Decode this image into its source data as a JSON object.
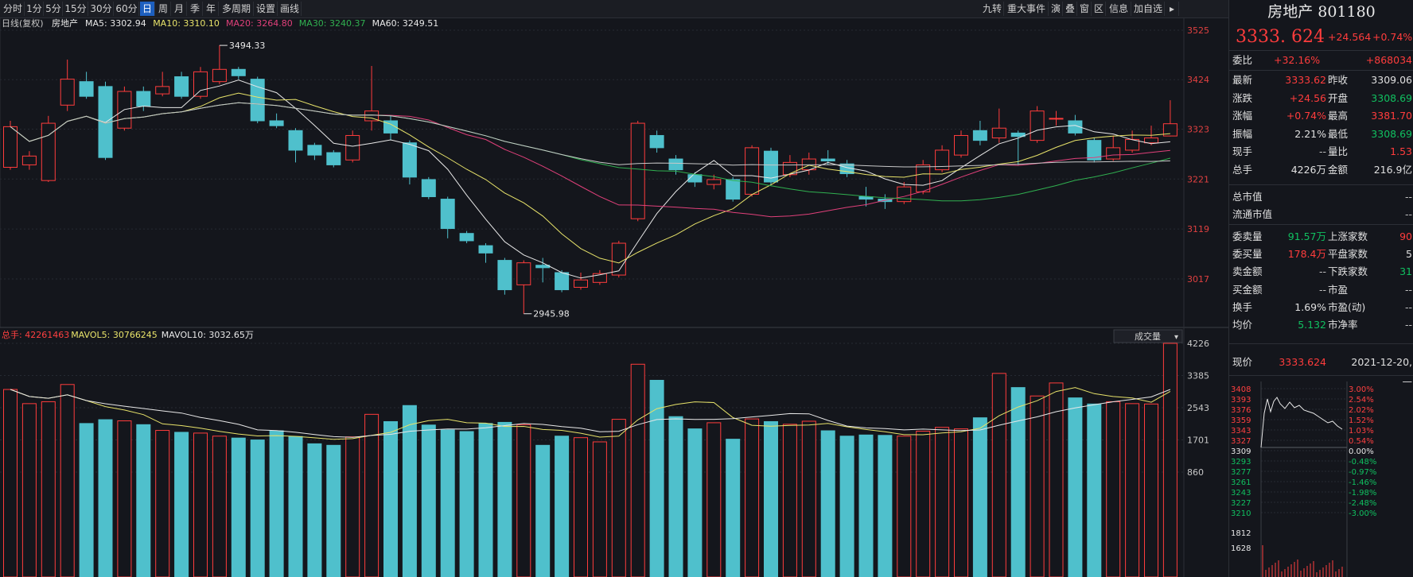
{
  "toolbar": {
    "left": [
      "分时",
      "1分",
      "5分",
      "15分",
      "30分",
      "60分",
      "日",
      "周",
      "月",
      "季",
      "年",
      "多周期",
      "设置",
      "画线"
    ],
    "active_index": 6,
    "right": [
      "九转",
      "重大事件",
      "演",
      "叠",
      "窗",
      "区",
      "信息",
      "加自选"
    ]
  },
  "ma_legend": {
    "period": "日线(复权)",
    "name": "房地产",
    "items": [
      {
        "label": "MA5: 3302.94",
        "color": "#e8e8e8"
      },
      {
        "label": "MA10: 3310.10",
        "color": "#e8e36a"
      },
      {
        "label": "MA20: 3264.80",
        "color": "#e0407a"
      },
      {
        "label": "MA30: 3240.37",
        "color": "#30b050"
      },
      {
        "label": "MA60: 3249.51",
        "color": "#e8e8e8"
      }
    ]
  },
  "vol_legend": {
    "items": [
      {
        "label": "总手: 42261463",
        "color": "#ff4040"
      },
      {
        "label": "MAVOL5: 30766245",
        "color": "#e8e36a"
      },
      {
        "label": "MAVOL10: 3032.65万",
        "color": "#e8e8e8"
      }
    ],
    "button": "成交量"
  },
  "chart_data": {
    "type": "candlestick",
    "price_axis_labels": [
      "3525",
      "3424",
      "3323",
      "3221",
      "3119",
      "3017"
    ],
    "price_axis_values": [
      3525,
      3424,
      3323,
      3221,
      3119,
      3017
    ],
    "volume_axis_labels": [
      "4226",
      "3385",
      "2543",
      "1701",
      "860"
    ],
    "volume_axis_values": [
      4226,
      3385,
      2543,
      1701,
      860
    ],
    "high_marker": "3494.33",
    "low_marker": "2945.98",
    "candles": [
      {
        "o": 3245,
        "c": 3328,
        "h": 3340,
        "l": 3240,
        "v": 3020
      },
      {
        "o": 3250,
        "c": 3268,
        "h": 3278,
        "l": 3240,
        "v": 2650
      },
      {
        "o": 3218,
        "c": 3335,
        "h": 3350,
        "l": 3215,
        "v": 2700
      },
      {
        "o": 3372,
        "c": 3425,
        "h": 3465,
        "l": 3360,
        "v": 3150
      },
      {
        "o": 3420,
        "c": 3390,
        "h": 3440,
        "l": 3385,
        "v": 2130
      },
      {
        "o": 3410,
        "c": 3265,
        "h": 3420,
        "l": 3260,
        "v": 2230
      },
      {
        "o": 3325,
        "c": 3400,
        "h": 3410,
        "l": 3320,
        "v": 2200
      },
      {
        "o": 3400,
        "c": 3370,
        "h": 3410,
        "l": 3360,
        "v": 2100
      },
      {
        "o": 3395,
        "c": 3410,
        "h": 3440,
        "l": 3390,
        "v": 1950
      },
      {
        "o": 3430,
        "c": 3390,
        "h": 3440,
        "l": 3385,
        "v": 1900
      },
      {
        "o": 3390,
        "c": 3440,
        "h": 3450,
        "l": 3385,
        "v": 1880
      },
      {
        "o": 3420,
        "c": 3445,
        "h": 3494,
        "l": 3415,
        "v": 1800
      },
      {
        "o": 3445,
        "c": 3432,
        "h": 3450,
        "l": 3425,
        "v": 1750
      },
      {
        "o": 3425,
        "c": 3340,
        "h": 3430,
        "l": 3335,
        "v": 1700
      },
      {
        "o": 3340,
        "c": 3330,
        "h": 3355,
        "l": 3325,
        "v": 1940
      },
      {
        "o": 3320,
        "c": 3280,
        "h": 3325,
        "l": 3255,
        "v": 1790
      },
      {
        "o": 3290,
        "c": 3270,
        "h": 3295,
        "l": 3260,
        "v": 1600
      },
      {
        "o": 3275,
        "c": 3250,
        "h": 3280,
        "l": 3245,
        "v": 1560
      },
      {
        "o": 3260,
        "c": 3310,
        "h": 3320,
        "l": 3255,
        "v": 1780
      },
      {
        "o": 3340,
        "c": 3360,
        "h": 3452,
        "l": 3320,
        "v": 2370
      },
      {
        "o": 3340,
        "c": 3315,
        "h": 3350,
        "l": 3300,
        "v": 2180
      },
      {
        "o": 3295,
        "c": 3225,
        "h": 3300,
        "l": 3210,
        "v": 2600
      },
      {
        "o": 3220,
        "c": 3185,
        "h": 3225,
        "l": 3180,
        "v": 2090
      },
      {
        "o": 3180,
        "c": 3120,
        "h": 3185,
        "l": 3100,
        "v": 1960
      },
      {
        "o": 3110,
        "c": 3095,
        "h": 3115,
        "l": 3090,
        "v": 1920
      },
      {
        "o": 3085,
        "c": 3070,
        "h": 3090,
        "l": 3050,
        "v": 2130
      },
      {
        "o": 3055,
        "c": 2995,
        "h": 3060,
        "l": 2985,
        "v": 2160
      },
      {
        "o": 3005,
        "c": 3050,
        "h": 3055,
        "l": 2946,
        "v": 2100
      },
      {
        "o": 3045,
        "c": 3040,
        "h": 3060,
        "l": 3010,
        "v": 1560
      },
      {
        "o": 3030,
        "c": 2995,
        "h": 3035,
        "l": 2990,
        "v": 1800
      },
      {
        "o": 3000,
        "c": 3015,
        "h": 3030,
        "l": 2995,
        "v": 1760
      },
      {
        "o": 3010,
        "c": 3028,
        "h": 3035,
        "l": 3005,
        "v": 1650
      },
      {
        "o": 3025,
        "c": 3090,
        "h": 3095,
        "l": 3020,
        "v": 2240
      },
      {
        "o": 3140,
        "c": 3335,
        "h": 3340,
        "l": 3135,
        "v": 3680
      },
      {
        "o": 3310,
        "c": 3285,
        "h": 3320,
        "l": 3275,
        "v": 3260
      },
      {
        "o": 3262,
        "c": 3240,
        "h": 3270,
        "l": 3230,
        "v": 2310
      },
      {
        "o": 3230,
        "c": 3215,
        "h": 3235,
        "l": 3205,
        "v": 1990
      },
      {
        "o": 3210,
        "c": 3220,
        "h": 3230,
        "l": 3200,
        "v": 2150
      },
      {
        "o": 3220,
        "c": 3180,
        "h": 3225,
        "l": 3175,
        "v": 1720
      },
      {
        "o": 3190,
        "c": 3285,
        "h": 3290,
        "l": 3185,
        "v": 2250
      },
      {
        "o": 3278,
        "c": 3215,
        "h": 3285,
        "l": 3210,
        "v": 2180
      },
      {
        "o": 3230,
        "c": 3255,
        "h": 3270,
        "l": 3225,
        "v": 2110
      },
      {
        "o": 3240,
        "c": 3262,
        "h": 3275,
        "l": 3230,
        "v": 2190
      },
      {
        "o": 3262,
        "c": 3258,
        "h": 3280,
        "l": 3250,
        "v": 1940
      },
      {
        "o": 3252,
        "c": 3232,
        "h": 3260,
        "l": 3225,
        "v": 1800
      },
      {
        "o": 3185,
        "c": 3180,
        "h": 3205,
        "l": 3165,
        "v": 1830
      },
      {
        "o": 3180,
        "c": 3175,
        "h": 3190,
        "l": 3160,
        "v": 1820
      },
      {
        "o": 3175,
        "c": 3205,
        "h": 3215,
        "l": 3170,
        "v": 1800
      },
      {
        "o": 3195,
        "c": 3250,
        "h": 3260,
        "l": 3190,
        "v": 1930
      },
      {
        "o": 3240,
        "c": 3280,
        "h": 3290,
        "l": 3235,
        "v": 2030
      },
      {
        "o": 3270,
        "c": 3310,
        "h": 3320,
        "l": 3265,
        "v": 1990
      },
      {
        "o": 3320,
        "c": 3300,
        "h": 3340,
        "l": 3290,
        "v": 2280
      },
      {
        "o": 3305,
        "c": 3325,
        "h": 3365,
        "l": 3295,
        "v": 3440
      },
      {
        "o": 3315,
        "c": 3308,
        "h": 3320,
        "l": 3250,
        "v": 3070
      },
      {
        "o": 3300,
        "c": 3360,
        "h": 3370,
        "l": 3295,
        "v": 2850
      },
      {
        "o": 3345,
        "c": 3345,
        "h": 3360,
        "l": 3330,
        "v": 3190
      },
      {
        "o": 3340,
        "c": 3315,
        "h": 3352,
        "l": 3310,
        "v": 2800
      },
      {
        "o": 3300,
        "c": 3260,
        "h": 3305,
        "l": 3255,
        "v": 2640
      },
      {
        "o": 3262,
        "c": 3285,
        "h": 3310,
        "l": 3258,
        "v": 2700
      },
      {
        "o": 3280,
        "c": 3302,
        "h": 3320,
        "l": 3275,
        "v": 2650
      },
      {
        "o": 3295,
        "c": 3305,
        "h": 3330,
        "l": 3290,
        "v": 2640
      },
      {
        "o": 3309,
        "c": 3334,
        "h": 3382,
        "l": 3308,
        "v": 4226
      }
    ]
  },
  "right_panel": {
    "title": "房地产 801180",
    "price": "3333. 624",
    "change": "+24.564",
    "change_pct": "+0.74%",
    "weibi_label": "委比",
    "weibi_pct": "+32.16%",
    "weibi_val": "+868034",
    "rows": [
      {
        "l1": "最新",
        "v1": "3333.62",
        "c1": "red",
        "l2": "昨收",
        "v2": "3309.06",
        "c2": "white"
      },
      {
        "l1": "涨跌",
        "v1": "+24.56",
        "c1": "red",
        "l2": "开盘",
        "v2": "3308.69",
        "c2": "green"
      },
      {
        "l1": "涨幅",
        "v1": "+0.74%",
        "c1": "red",
        "l2": "最高",
        "v2": "3381.70",
        "c2": "red"
      },
      {
        "l1": "振幅",
        "v1": "2.21%",
        "c1": "white",
        "l2": "最低",
        "v2": "3308.69",
        "c2": "green"
      },
      {
        "l1": "现手",
        "v1": "--",
        "c1": "gray",
        "l2": "量比",
        "v2": "1.53",
        "c2": "red"
      },
      {
        "l1": "总手",
        "v1": "4226万",
        "c1": "white",
        "l2": "金额",
        "v2": "216.9亿",
        "c2": "white"
      }
    ],
    "rows2": [
      {
        "l1": "总市值",
        "v1": "--"
      },
      {
        "l1": "流通市值",
        "v1": "--"
      }
    ],
    "rows3": [
      {
        "l1": "委卖量",
        "v1": "91.57万",
        "c1": "green",
        "l2": "上涨家数",
        "v2": "90",
        "c2": "red"
      },
      {
        "l1": "委买量",
        "v1": "178.4万",
        "c1": "red",
        "l2": "平盘家数",
        "v2": "5",
        "c2": "white"
      },
      {
        "l1": "卖金额",
        "v1": "--",
        "c1": "gray",
        "l2": "下跌家数",
        "v2": "31",
        "c2": "green"
      },
      {
        "l1": "买金额",
        "v1": "--",
        "c1": "gray",
        "l2": "市盈",
        "v2": "--",
        "c2": "gray"
      },
      {
        "l1": "换手",
        "v1": "1.69%",
        "c1": "white",
        "l2": "市盈(动)",
        "v2": "--",
        "c2": "gray"
      },
      {
        "l1": "均价",
        "v1": "5.132",
        "c1": "green",
        "l2": "市净率",
        "v2": "--",
        "c2": "gray"
      }
    ],
    "current_label": "现价",
    "current_value": "3333.624",
    "current_date": "2021-12-20,—",
    "mini": {
      "left_labels": [
        "3408",
        "3393",
        "3376",
        "3359",
        "3343",
        "3327",
        "3309",
        "3293",
        "3277",
        "3261",
        "3243",
        "3227",
        "3210",
        "1812",
        "1628"
      ],
      "right_labels": [
        "3.00%",
        "2.54%",
        "2.02%",
        "1.52%",
        "1.03%",
        "0.54%",
        "0.00%",
        "-0.48%",
        "-0.97%",
        "-1.46%",
        "-1.98%",
        "-2.48%",
        "-3.00%"
      ]
    }
  },
  "colors": {
    "up": "#ff3c3c",
    "down": "#4fc0cc",
    "grid": "#262a32",
    "bg": "#14161c"
  }
}
